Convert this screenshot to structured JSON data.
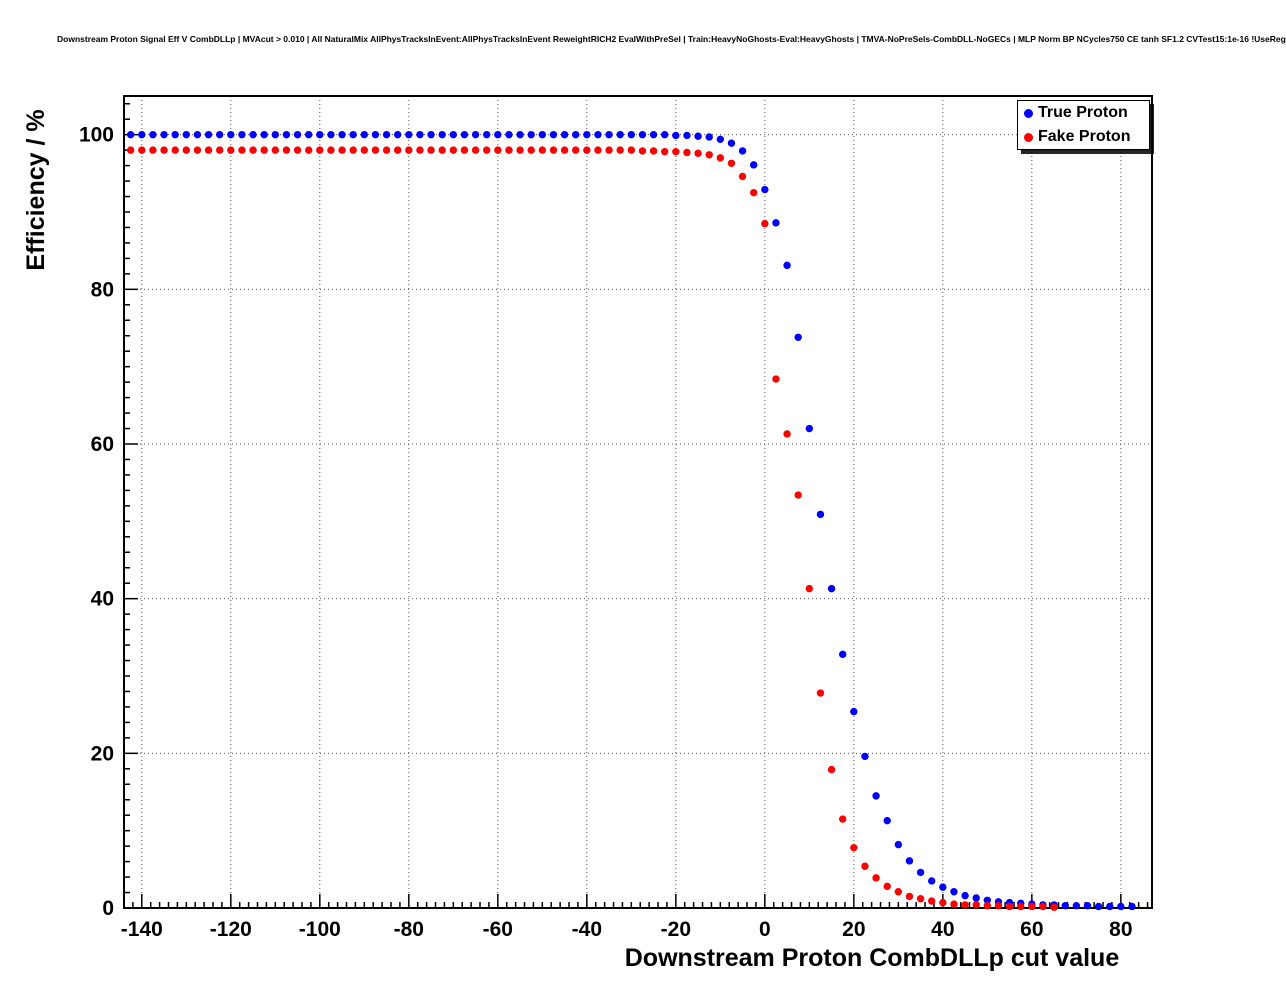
{
  "chart_data": {
    "type": "scatter",
    "title": "Downstream Proton Signal Eff V CombDLLp | MVAcut > 0.010 | All NaturalMix AllPhysTracksInEvent:AllPhysTracksInEvent ReweightRICH2 EvalWithPreSel | Train:HeavyNoGhosts-Eval:HeavyGhosts | TMVA-NoPreSels-CombDLL-NoGECs | MLP Norm BP NCycles750 CE tanh SF1.2 CVTest15:1e-16 !UseReg",
    "xlabel": "Downstream Proton CombDLLp cut value",
    "ylabel": "Efficiency / %",
    "xlim": [
      -144,
      87
    ],
    "ylim": [
      0,
      105
    ],
    "x_ticks": [
      -140,
      -120,
      -100,
      -80,
      -60,
      -40,
      -20,
      0,
      20,
      40,
      60,
      80
    ],
    "y_ticks": [
      0,
      20,
      40,
      60,
      80,
      100
    ],
    "grid": "dotted",
    "marker": "filled-circle",
    "colors": {
      "true_proton": "#0000ff",
      "fake_proton": "#ff0000"
    },
    "legend": {
      "position": "top-right",
      "entries": [
        {
          "label": "True Proton",
          "color": "#0000ff"
        },
        {
          "label": "Fake Proton",
          "color": "#ff0000"
        }
      ]
    },
    "series": [
      {
        "name": "True Proton",
        "color": "#0000ff",
        "x_start": -142.5,
        "x_step": 2.5,
        "values": [
          100,
          100,
          100,
          100,
          100,
          100,
          100,
          100,
          100,
          100,
          100,
          100,
          100,
          100,
          100,
          100,
          100,
          100,
          100,
          100,
          100,
          100,
          100,
          100,
          100,
          100,
          100,
          100,
          100,
          100,
          100,
          100,
          100,
          100,
          100,
          100,
          100,
          100,
          100,
          100,
          100,
          100,
          100,
          100,
          100,
          100,
          100,
          100,
          100,
          99.9,
          99.9,
          99.8,
          99.7,
          99.4,
          98.9,
          97.9,
          96.1,
          92.9,
          88.6,
          83.1,
          73.8,
          62,
          50.9,
          41.3,
          32.8,
          25.4,
          19.6,
          14.5,
          11.3,
          8.2,
          6.1,
          4.6,
          3.5,
          2.7,
          2.1,
          1.6,
          1.3,
          1,
          0.8,
          0.7,
          0.6,
          0.5,
          0.4,
          0.4,
          0.3,
          0.3,
          0.3,
          0.2,
          0.2,
          0.2,
          0.2
        ]
      },
      {
        "name": "Fake Proton",
        "color": "#ff0000",
        "x_start": -142.5,
        "x_step": 2.5,
        "values": [
          98,
          98,
          98,
          98,
          98,
          98,
          98,
          98,
          98,
          98,
          98,
          98,
          98,
          98,
          98,
          98,
          98,
          98,
          98,
          98,
          98,
          98,
          98,
          98,
          98,
          98,
          98,
          98,
          98,
          98,
          98,
          98,
          98,
          98,
          98,
          98,
          98,
          98,
          98,
          98,
          98,
          98,
          98,
          98,
          98,
          98,
          97.9,
          97.9,
          97.8,
          97.8,
          97.7,
          97.6,
          97.4,
          97,
          96.3,
          94.6,
          92.5,
          88.5,
          68.4,
          61.3,
          53.4,
          41.3,
          27.8,
          17.9,
          11.5,
          7.8,
          5.4,
          3.9,
          2.8,
          2.1,
          1.5,
          1.2,
          0.9,
          0.7,
          0.5,
          0.4,
          0.4,
          0.3,
          0.3,
          0.2,
          0.2,
          0.2,
          0.2,
          0.1
        ]
      }
    ]
  }
}
